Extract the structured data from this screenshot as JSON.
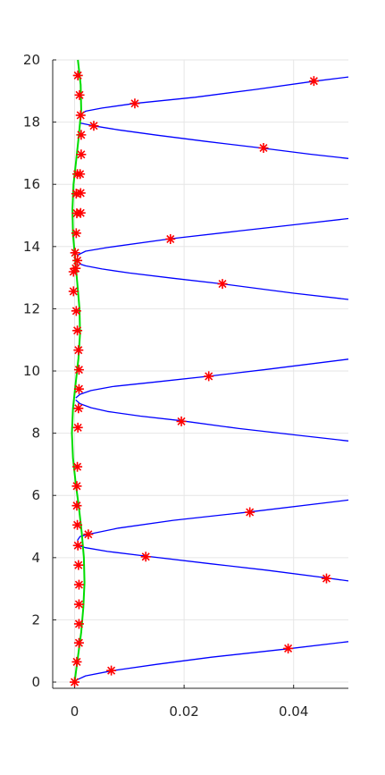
{
  "chart_data": {
    "type": "line",
    "title": "",
    "xlabel": "",
    "ylabel": "",
    "xlim": [
      -0.004,
      0.05
    ],
    "ylim": [
      -0.2,
      20
    ],
    "grid": true,
    "x_ticks": [
      0,
      0.02,
      0.04
    ],
    "x_tick_labels": [
      "0",
      "0.02",
      "0.04"
    ],
    "y_ticks": [
      0,
      2,
      4,
      6,
      8,
      10,
      12,
      14,
      16,
      18,
      20
    ],
    "y_tick_labels": [
      "0",
      "2",
      "4",
      "6",
      "8",
      "10",
      "12",
      "14",
      "16",
      "18",
      "20"
    ],
    "colors": {
      "blue_lines": "#0000ff",
      "green_line": "#00dd00",
      "markers": "#ff0000",
      "grid": "#e6e6e6",
      "axis": "#262626"
    },
    "series": [
      {
        "style": "line",
        "color": "#0000ff",
        "x": [
          0,
          0.0005,
          0.002,
          0.007,
          0.015,
          0.025,
          0.039,
          0.05
        ],
        "y": [
          0,
          0.08,
          0.2,
          0.37,
          0.57,
          0.8,
          1.07,
          1.3
        ]
      },
      {
        "style": "line",
        "color": "#0000ff",
        "x": [
          0.05,
          0.046,
          0.035,
          0.025,
          0.013,
          0.006,
          0.002,
          0.0005
        ],
        "y": [
          3.25,
          3.35,
          3.6,
          3.8,
          4.05,
          4.2,
          4.32,
          4.4
        ]
      },
      {
        "style": "line",
        "color": "#0000ff",
        "x": [
          0.0005,
          0.001,
          0.0025,
          0.008,
          0.018,
          0.032,
          0.05
        ],
        "y": [
          4.55,
          4.68,
          4.75,
          4.95,
          5.2,
          5.47,
          5.85
        ]
      },
      {
        "style": "line",
        "color": "#0000ff",
        "x": [
          0.05,
          0.04,
          0.03,
          0.0195,
          0.012,
          0.006,
          0.003,
          0.001,
          0.0002
        ],
        "y": [
          7.75,
          7.95,
          8.15,
          8.4,
          8.55,
          8.7,
          8.82,
          8.95,
          9.07
        ]
      },
      {
        "style": "line",
        "color": "#0000ff",
        "x": [
          0.0002,
          0.001,
          0.003,
          0.007,
          0.015,
          0.0245,
          0.035,
          0.05
        ],
        "y": [
          9.13,
          9.25,
          9.37,
          9.5,
          9.65,
          9.83,
          10.05,
          10.38
        ]
      },
      {
        "style": "line",
        "color": "#0000ff",
        "x": [
          0.05,
          0.04,
          0.027,
          0.018,
          0.01,
          0.005,
          0.002,
          0.0008
        ],
        "y": [
          12.3,
          12.5,
          12.8,
          12.98,
          13.15,
          13.28,
          13.38,
          13.45
        ]
      },
      {
        "style": "line",
        "color": "#0000ff",
        "x": [
          0.0005,
          0.002,
          0.006,
          0.0175,
          0.03,
          0.04,
          0.05
        ],
        "y": [
          13.72,
          13.85,
          13.97,
          14.25,
          14.5,
          14.7,
          14.9
        ]
      },
      {
        "style": "line",
        "color": "#0000ff",
        "x": [
          0.05,
          0.043,
          0.034,
          0.024,
          0.015,
          0.008,
          0.0035,
          0.001
        ],
        "y": [
          16.83,
          16.97,
          17.17,
          17.38,
          17.58,
          17.75,
          17.88,
          17.97
        ]
      },
      {
        "style": "line",
        "color": "#0000ff",
        "x": [
          0.0007,
          0.002,
          0.005,
          0.011,
          0.022,
          0.033,
          0.044,
          0.05
        ],
        "y": [
          18.2,
          18.35,
          18.45,
          18.6,
          18.8,
          19.05,
          19.32,
          19.45
        ]
      },
      {
        "style": "line",
        "color": "#00dd00",
        "x": [
          0,
          0.0006,
          0.0012,
          0.0016,
          0.0018,
          0.0017,
          0.0013,
          0.0008,
          0.0002,
          -0.0003,
          -0.0005,
          -0.0003,
          0.0002,
          0.0007,
          0.001,
          0.0009,
          0.0005,
          0.0001,
          -0.0003,
          -0.0004,
          -0.0002,
          0.0003,
          0.0008,
          0.0012,
          0.0011,
          0.0006
        ],
        "y": [
          0,
          0.8,
          1.6,
          2.4,
          3.2,
          4,
          4.8,
          5.6,
          6.4,
          7.2,
          8,
          8.8,
          9.6,
          10.4,
          11.2,
          12,
          12.8,
          13.6,
          14.4,
          15.2,
          16,
          16.8,
          17.6,
          18.4,
          19.2,
          20
        ]
      },
      {
        "style": "markers",
        "color": "#ff0000",
        "x": [
          0,
          0.0067,
          0.039,
          0.046,
          0.013,
          0.0025,
          0.032,
          0.0195,
          0.0245,
          0.027,
          0.0175,
          0.0345,
          0.0035,
          0.011,
          0.0437
        ],
        "y": [
          0.0,
          0.37,
          1.08,
          3.33,
          4.03,
          4.75,
          5.46,
          8.38,
          9.83,
          12.8,
          14.24,
          17.17,
          17.88,
          18.6,
          19.32
        ]
      },
      {
        "style": "markers",
        "color": "#ff0000",
        "x": [
          0.0004,
          0.0008,
          0.0008,
          0.0008,
          0.0008,
          0.0007,
          0.0006,
          0.0005,
          0.0004,
          0.0004,
          0.0005,
          0.0006,
          0.0007,
          0.0008,
          0.0008,
          0.0007,
          0.0005,
          0.0003,
          -0.0002,
          -0.0002,
          0.0001,
          0.0003,
          0.0004,
          0.0003,
          0.001,
          0.0012,
          0.0012,
          0.0011,
          0.0009,
          0.0006,
          0.0005,
          0.0002,
          0.0005,
          0.0011,
          0.0011
        ],
        "y": [
          0.65,
          1.26,
          1.87,
          2.5,
          3.13,
          3.76,
          4.39,
          5.05,
          5.67,
          6.3,
          6.92,
          8.18,
          8.8,
          9.42,
          10.04,
          10.67,
          11.3,
          11.93,
          12.56,
          13.19,
          13.8,
          14.43,
          15.07,
          15.7,
          16.33,
          16.96,
          17.59,
          18.22,
          18.87,
          19.5,
          13.55,
          13.3,
          16.33,
          15.72,
          15.08
        ]
      }
    ]
  }
}
